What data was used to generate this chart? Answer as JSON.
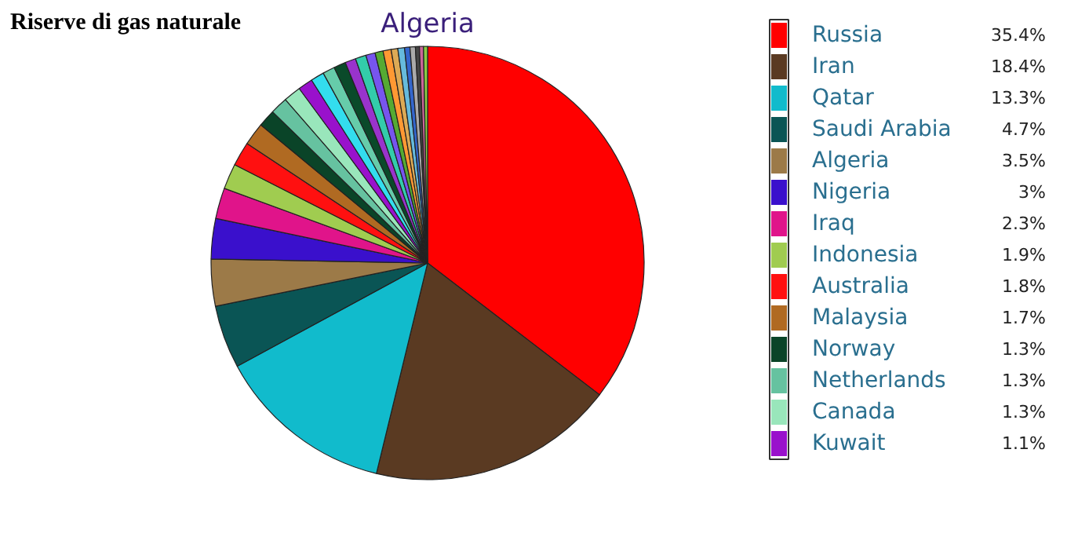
{
  "chart_data": {
    "type": "pie",
    "title": "Riserve di gas naturale",
    "annotations": [
      "Algeria"
    ],
    "categories": [
      "Russia",
      "Iran",
      "Qatar",
      "Saudi Arabia",
      "Algeria",
      "Nigeria",
      "Iraq",
      "Indonesia",
      "Australia",
      "Malaysia",
      "Norway",
      "Netherlands",
      "Canada",
      "Kuwait",
      null,
      null,
      null,
      null,
      null,
      null,
      null,
      null,
      null,
      null,
      null,
      null,
      null,
      null,
      null
    ],
    "values": [
      35.4,
      18.4,
      13.3,
      4.7,
      3.5,
      3,
      2.3,
      1.9,
      1.8,
      1.7,
      1.3,
      1.3,
      1.3,
      1.1,
      1.0,
      0.9,
      0.9,
      0.8,
      0.8,
      0.7,
      0.6,
      0.6,
      0.5,
      0.5,
      0.4,
      0.4,
      0.3,
      0.3,
      0.3
    ],
    "value_labels": [
      "35.4%",
      "18.4%",
      "13.3%",
      "4.7%",
      "3.5%",
      "3%",
      "2.3%",
      "1.9%",
      "1.8%",
      "1.7%",
      "1.3%",
      "1.3%",
      "1.3%",
      "1.1%",
      null,
      null,
      null,
      null,
      null,
      null,
      null,
      null,
      null,
      null,
      null,
      null,
      null,
      null,
      null
    ],
    "colors": [
      "#ff0000",
      "#5a3a22",
      "#11bbcc",
      "#0a5555",
      "#9c7a48",
      "#3a10cc",
      "#e0148a",
      "#a0cc50",
      "#ff1010",
      "#b06a22",
      "#0a4428",
      "#66c2a0",
      "#99e6bb",
      "#9911cc",
      "#33ddee",
      "#66ccaa",
      "#0a4a2a",
      "#9933cc",
      "#33ccaa",
      "#7755ee",
      "#55aa33",
      "#ff9933",
      "#ddaa55",
      "#66bbdd",
      "#3366cc",
      "#aaaaaa",
      "#444444",
      "#cc6699",
      "#88cc44"
    ],
    "legend": "right"
  }
}
